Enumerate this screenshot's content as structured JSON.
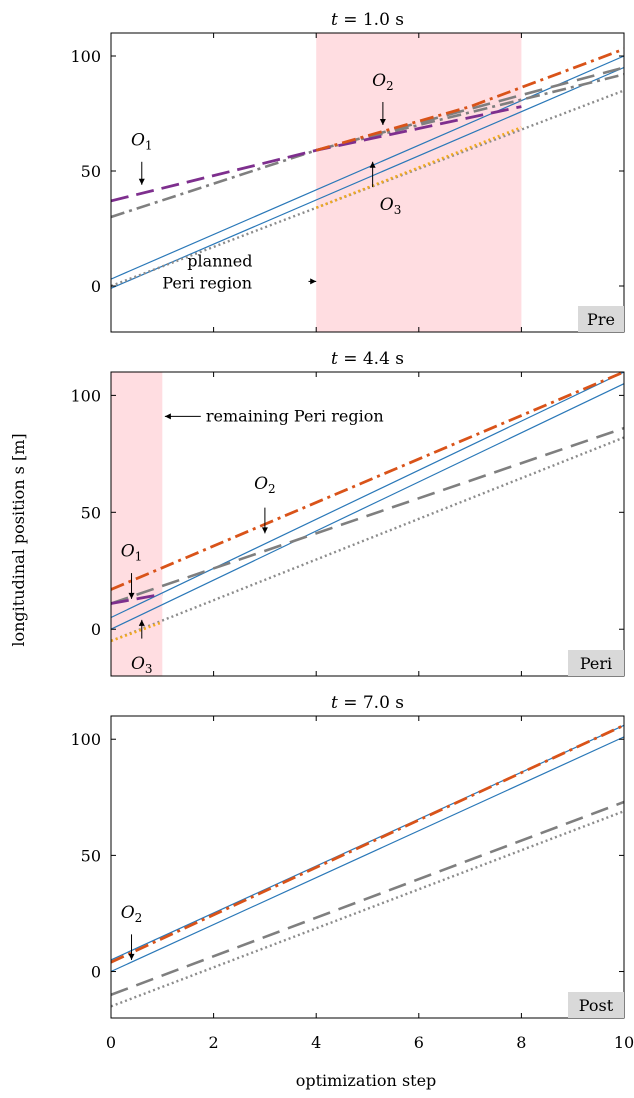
{
  "chart_data": [
    {
      "type": "line",
      "title": "t = 1.0 s",
      "title_parts": {
        "var": "t",
        "rest": " = 1.0 s"
      },
      "phase_tag": "Pre",
      "xlim": [
        0,
        10
      ],
      "ylim": [
        -20,
        110
      ],
      "yticks": [
        0,
        50,
        100
      ],
      "xticks": [],
      "shaded_region": [
        4,
        8
      ],
      "series": [
        {
          "style": "ego-blue",
          "points": [
            [
              0,
              3
            ],
            [
              10,
              100
            ]
          ]
        },
        {
          "style": "ego-blue",
          "points": [
            [
              0,
              -1
            ],
            [
              10,
              95
            ]
          ]
        },
        {
          "style": "obj-gray-dashdot",
          "points": [
            [
              0,
              30
            ],
            [
              4,
              59
            ],
            [
              10,
              92
            ]
          ]
        },
        {
          "style": "obj-gray-dashed",
          "points": [
            [
              4,
              59
            ],
            [
              10,
              95
            ]
          ]
        },
        {
          "style": "obj-gray-dotted",
          "points": [
            [
              0,
              0
            ],
            [
              10,
              85
            ]
          ]
        },
        {
          "style": "obj-purple-dashed",
          "points": [
            [
              0,
              37
            ],
            [
              4,
              59
            ],
            [
              8,
              78
            ]
          ]
        },
        {
          "style": "obj-orange-dashdot",
          "points": [
            [
              4,
              59
            ],
            [
              7,
              78
            ],
            [
              10,
              103
            ]
          ]
        },
        {
          "style": "obj-yellow-dotted",
          "points": [
            [
              4,
              34
            ],
            [
              8,
              69
            ]
          ]
        }
      ],
      "annotations": [
        {
          "kind": "obj",
          "name": "O",
          "sub": "1",
          "at": [
            0.6,
            61
          ],
          "arrow": [
            [
              0.6,
              54
            ],
            [
              0.6,
              44
            ]
          ]
        },
        {
          "kind": "obj",
          "name": "O",
          "sub": "2",
          "at": [
            5.3,
            87
          ],
          "arrow": [
            [
              5.3,
              80
            ],
            [
              5.3,
              70
            ]
          ]
        },
        {
          "kind": "obj",
          "name": "O",
          "sub": "3",
          "at": [
            5.45,
            33
          ],
          "arrow": [
            [
              5.1,
              43
            ],
            [
              5.1,
              54
            ]
          ]
        },
        {
          "kind": "text",
          "lines": [
            "planned",
            "Peri region"
          ],
          "at": [
            1.0,
            5
          ],
          "arrow": [
            [
              3.85,
              2
            ],
            [
              4.0,
              2
            ]
          ]
        }
      ]
    },
    {
      "type": "line",
      "title": "t = 4.4 s",
      "title_parts": {
        "var": "t",
        "rest": " = 4.4 s"
      },
      "phase_tag": "Peri",
      "xlim": [
        0,
        10
      ],
      "ylim": [
        -20,
        110
      ],
      "yticks": [
        0,
        50,
        100
      ],
      "xticks": [],
      "shaded_region": [
        0,
        1
      ],
      "series": [
        {
          "style": "ego-blue",
          "points": [
            [
              0,
              5
            ],
            [
              10,
              110
            ]
          ]
        },
        {
          "style": "ego-blue",
          "points": [
            [
              0,
              0
            ],
            [
              10,
              105
            ]
          ]
        },
        {
          "style": "obj-gray-dashed",
          "points": [
            [
              0,
              11
            ],
            [
              10,
              86
            ]
          ]
        },
        {
          "style": "obj-gray-dotted",
          "points": [
            [
              0,
              -5
            ],
            [
              10,
              82
            ]
          ]
        },
        {
          "style": "obj-orange-dashdot",
          "points": [
            [
              0,
              17
            ],
            [
              10,
              110
            ]
          ]
        },
        {
          "style": "obj-purple-dashed",
          "points": [
            [
              0,
              11
            ],
            [
              1,
              15
            ]
          ]
        },
        {
          "style": "obj-yellow-dotted",
          "points": [
            [
              0,
              -5
            ],
            [
              1,
              3
            ]
          ]
        }
      ],
      "annotations": [
        {
          "kind": "obj",
          "name": "O",
          "sub": "2",
          "at": [
            3.0,
            60
          ],
          "arrow": [
            [
              3.0,
              52
            ],
            [
              3.0,
              41
            ]
          ]
        },
        {
          "kind": "obj",
          "name": "O",
          "sub": "1",
          "at": [
            0.4,
            31
          ],
          "arrow": [
            [
              0.4,
              24
            ],
            [
              0.4,
              13
            ]
          ]
        },
        {
          "kind": "obj",
          "name": "O",
          "sub": "3",
          "at": [
            0.6,
            -17
          ],
          "arrow": [
            [
              0.6,
              -4
            ],
            [
              0.6,
              4
            ]
          ]
        },
        {
          "kind": "text",
          "lines": [
            "remaining Peri region"
          ],
          "at": [
            1.85,
            91
          ],
          "arrow": [
            [
              1.75,
              91
            ],
            [
              1.05,
              91
            ]
          ]
        }
      ]
    },
    {
      "type": "line",
      "title": "t = 7.0 s",
      "title_parts": {
        "var": "t",
        "rest": " = 7.0 s"
      },
      "phase_tag": "Post",
      "xlim": [
        0,
        10
      ],
      "ylim": [
        -20,
        110
      ],
      "yticks": [
        0,
        50,
        100
      ],
      "xticks": [
        0,
        2,
        4,
        6,
        8,
        10
      ],
      "shaded_region": null,
      "series": [
        {
          "style": "ego-blue",
          "points": [
            [
              0,
              5
            ],
            [
              10,
              106
            ]
          ]
        },
        {
          "style": "ego-blue",
          "points": [
            [
              0,
              0
            ],
            [
              10,
              101
            ]
          ]
        },
        {
          "style": "obj-gray-dashed",
          "points": [
            [
              0,
              -10
            ],
            [
              10,
              73
            ]
          ]
        },
        {
          "style": "obj-gray-dotted",
          "points": [
            [
              0,
              -15
            ],
            [
              10,
              69
            ]
          ]
        },
        {
          "style": "obj-orange-dashdot",
          "points": [
            [
              0,
              4
            ],
            [
              10,
              106
            ]
          ]
        }
      ],
      "annotations": [
        {
          "kind": "obj",
          "name": "O",
          "sub": "2",
          "at": [
            0.4,
            23
          ],
          "arrow": [
            [
              0.4,
              16
            ],
            [
              0.4,
              5
            ]
          ]
        }
      ]
    }
  ],
  "shared": {
    "ylabel": "longitudinal position s [m]",
    "xlabel": "optimization step"
  },
  "colors": {
    "ego": "#2A78B8",
    "orange": "#D95319",
    "purple": "#7E2F8E",
    "yellow": "#F2A91E",
    "gray": "#7F7F7F",
    "dotgray": "#8C8C8C",
    "shade": "#FFDDE1",
    "tag_bg": "#D9D9D9"
  }
}
